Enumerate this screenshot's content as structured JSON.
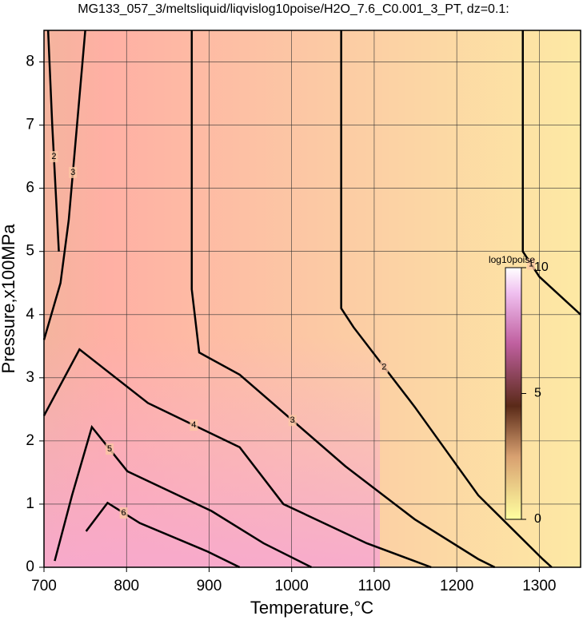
{
  "chart_data": {
    "type": "contour",
    "title": "MG133_057_3/meltsliquid/liqvislog10poise/H2O_7.6_C0.001_3_PT, dz=0.1:",
    "x_label": "Temperature,°C",
    "y_label": "Pressure,x100MPa",
    "xlim": [
      700,
      1350
    ],
    "ylim": [
      0,
      8.5
    ],
    "xticks": [
      700,
      800,
      900,
      1000,
      1100,
      1200,
      1300
    ],
    "yticks": [
      0,
      1,
      2,
      3,
      4,
      5,
      6,
      7,
      8
    ],
    "grid": true,
    "contours": [
      {
        "level": 1,
        "x": [
          1280,
          1280,
          1300,
          1350
        ],
        "y": [
          8.5,
          5.0,
          4.6,
          4.0
        ]
      },
      {
        "level": 2,
        "x": [
          705,
          710,
          714,
          718
        ],
        "y": [
          8.5,
          7.0,
          6.0,
          5.0
        ]
      },
      {
        "level": 2,
        "x": [
          1060,
          1060,
          1075,
          1149,
          1226,
          1304,
          1315
        ],
        "y": [
          8.5,
          4.1,
          3.8,
          2.54,
          1.14,
          0.13,
          0
        ]
      },
      {
        "level": 3,
        "x": [
          750,
          740,
          730,
          720,
          700
        ],
        "y": [
          8.5,
          7.0,
          5.5,
          4.5,
          3.6
        ]
      },
      {
        "level": 3,
        "x": [
          879,
          879,
          888,
          937,
          1065,
          1149,
          1226,
          1246
        ],
        "y": [
          8.5,
          4.4,
          3.4,
          3.05,
          1.6,
          0.76,
          0.13,
          0
        ]
      },
      {
        "level": 4,
        "x": [
          700,
          743,
          826,
          937,
          990,
          1091,
          1169
        ],
        "y": [
          2.4,
          3.45,
          2.6,
          1.9,
          1.0,
          0.38,
          0
        ]
      },
      {
        "level": 5,
        "x": [
          713,
          734,
          758,
          801,
          903,
          966,
          1024
        ],
        "y": [
          0.1,
          1.14,
          2.22,
          1.52,
          0.89,
          0.38,
          0
        ]
      },
      {
        "level": 6,
        "x": [
          751,
          777,
          816,
          898,
          937
        ],
        "y": [
          0.57,
          1.02,
          0.7,
          0.25,
          0
        ]
      }
    ],
    "colorbar": {
      "label": "log10poise",
      "lim": [
        0,
        10
      ],
      "ticks": [
        0,
        5,
        10
      ]
    }
  }
}
